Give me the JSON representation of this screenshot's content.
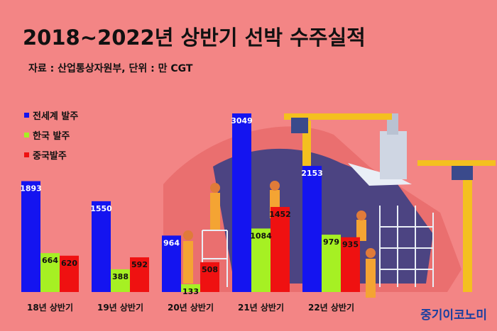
{
  "header": {
    "title": "2018~2022년 상반기 선박 수주실적",
    "subtitle": "자료 : 산업통상자원부, 단위 : 만 CGT"
  },
  "brand": "중기이코노미",
  "colors": {
    "background": "#f38585",
    "world": "#1414f0",
    "korea": "#a6f023",
    "china": "#ef1111"
  },
  "chart_data": {
    "type": "bar",
    "title": "2018~2022년 상반기 선박 수주실적",
    "xlabel": "",
    "ylabel": "",
    "categories": [
      "18년 상반기",
      "19년 상반기",
      "20년 상반기",
      "21년 상반기",
      "22년 상반기"
    ],
    "series": [
      {
        "name": "전세계 발주",
        "color": "#1414f0",
        "values": [
          1893,
          1550,
          964,
          3049,
          2153
        ]
      },
      {
        "name": "한국 발주",
        "color": "#a6f023",
        "values": [
          664,
          388,
          133,
          1084,
          979
        ]
      },
      {
        "name": "중국발주",
        "color": "#ef1111",
        "values": [
          620,
          592,
          508,
          1452,
          935
        ]
      }
    ],
    "ylim": [
      0,
      3049
    ],
    "grid": false,
    "legend_position": "top-left",
    "data_labels": true
  }
}
